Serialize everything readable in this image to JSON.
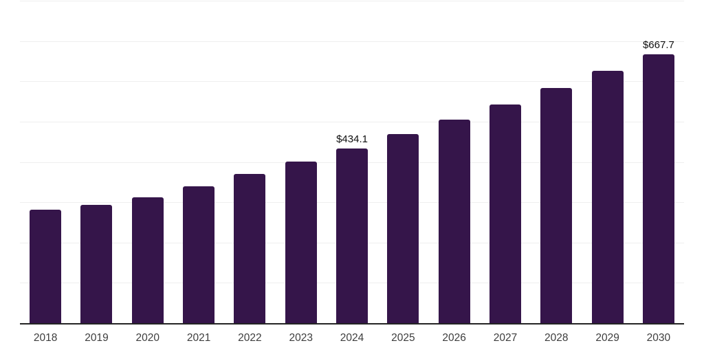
{
  "chart_data": {
    "type": "bar",
    "title": "",
    "xlabel": "",
    "ylabel": "",
    "categories": [
      "2018",
      "2019",
      "2020",
      "2021",
      "2022",
      "2023",
      "2024",
      "2025",
      "2026",
      "2027",
      "2028",
      "2029",
      "2030"
    ],
    "values": [
      281.5,
      293.5,
      312,
      339.5,
      370,
      401,
      434.1,
      469,
      505,
      542.5,
      583.5,
      626,
      667.7
    ],
    "bar_labels": [
      "",
      "",
      "",
      "",
      "",
      "",
      "$434.1",
      "",
      "",
      "",
      "",
      "",
      "$667.7"
    ],
    "value_prefix": "$",
    "ylim": [
      0,
      800
    ],
    "ytick_step": 100,
    "ytick_labels_shown": false,
    "grid": "horizontal",
    "legend": "none"
  },
  "style": {
    "background_color": "#ffffff",
    "bar_color": "#35154A",
    "grid_color": "#efefef",
    "axis_color": "#242424",
    "x_tick_color": "#3d3d3d",
    "bar_label_color": "#0f0f0f"
  }
}
